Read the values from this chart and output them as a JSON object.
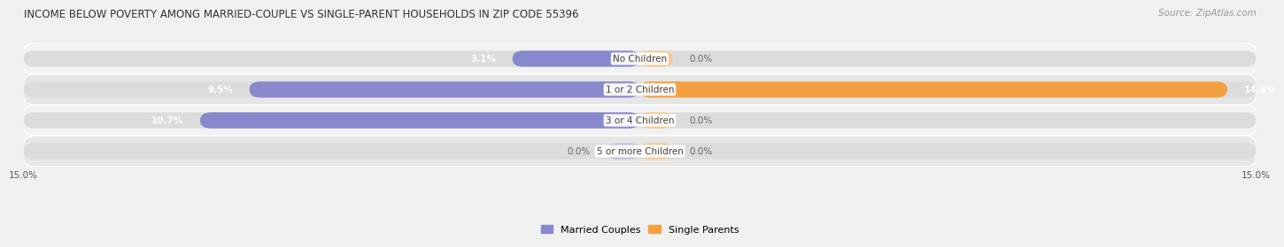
{
  "title": "INCOME BELOW POVERTY AMONG MARRIED-COUPLE VS SINGLE-PARENT HOUSEHOLDS IN ZIP CODE 55396",
  "source": "Source: ZipAtlas.com",
  "categories": [
    "No Children",
    "1 or 2 Children",
    "3 or 4 Children",
    "5 or more Children"
  ],
  "married_values": [
    3.1,
    9.5,
    10.7,
    0.0
  ],
  "single_values": [
    0.0,
    14.3,
    0.0,
    0.0
  ],
  "married_color": "#8888cc",
  "single_color": "#f5a040",
  "married_light": "#c0c0e0",
  "single_light": "#f8c890",
  "row_bg_odd": "#efefef",
  "row_bg_even": "#e8e8e8",
  "xlim": 15.0,
  "bar_height": 0.52,
  "title_fontsize": 8.5,
  "label_fontsize": 7.5,
  "value_fontsize": 7.5,
  "tick_fontsize": 7.5,
  "legend_fontsize": 8,
  "source_fontsize": 7.5
}
